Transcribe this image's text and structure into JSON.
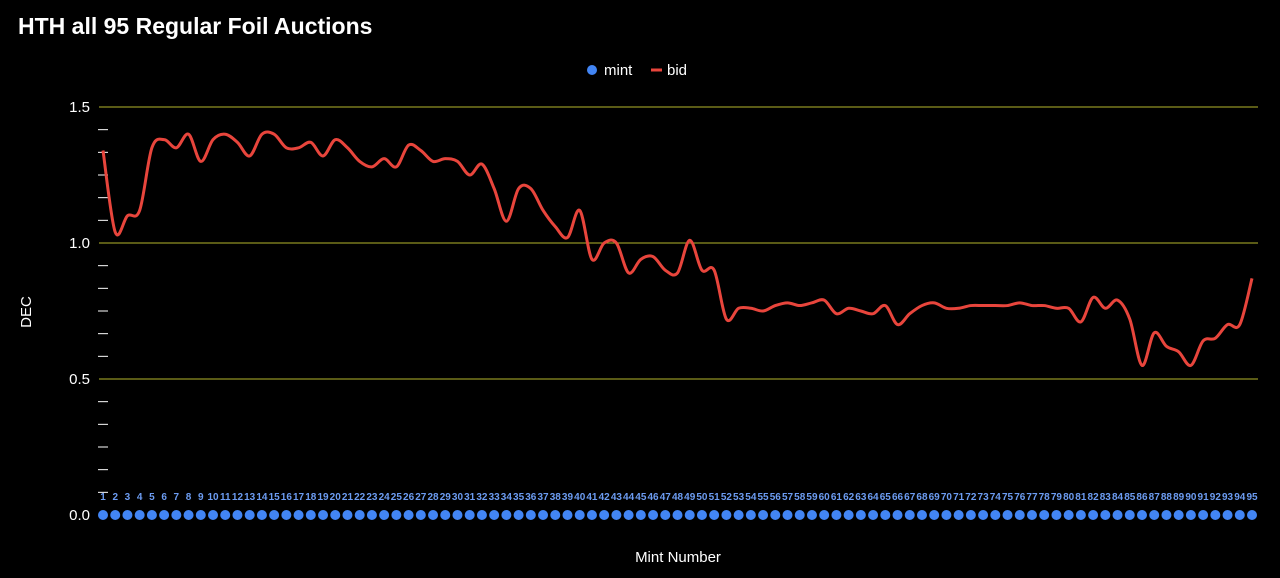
{
  "chart_data": {
    "type": "line",
    "title": "HTH all 95  Regular Foil Auctions",
    "xlabel": "Mint Number",
    "ylabel": "DEC",
    "ylim": [
      0,
      1.5
    ],
    "yticks": [
      "0.0",
      "0.5",
      "1.0",
      "1.5"
    ],
    "grid": true,
    "legend_position": "top",
    "x": [
      1,
      2,
      3,
      4,
      5,
      6,
      7,
      8,
      9,
      10,
      11,
      12,
      13,
      14,
      15,
      16,
      17,
      18,
      19,
      20,
      21,
      22,
      23,
      24,
      25,
      26,
      27,
      28,
      29,
      30,
      31,
      32,
      33,
      34,
      35,
      36,
      37,
      38,
      39,
      40,
      41,
      42,
      43,
      44,
      45,
      46,
      47,
      48,
      49,
      50,
      51,
      52,
      53,
      54,
      55,
      56,
      57,
      58,
      59,
      60,
      61,
      62,
      63,
      64,
      65,
      66,
      67,
      68,
      69,
      70,
      71,
      72,
      73,
      74,
      75,
      76,
      77,
      78,
      79,
      80,
      81,
      82,
      83,
      84,
      85,
      86,
      87,
      88,
      89,
      90,
      91,
      92,
      93,
      94,
      95
    ],
    "series": [
      {
        "name": "mint",
        "color": "#4285f4",
        "style": "points",
        "values": [
          0,
          0,
          0,
          0,
          0,
          0,
          0,
          0,
          0,
          0,
          0,
          0,
          0,
          0,
          0,
          0,
          0,
          0,
          0,
          0,
          0,
          0,
          0,
          0,
          0,
          0,
          0,
          0,
          0,
          0,
          0,
          0,
          0,
          0,
          0,
          0,
          0,
          0,
          0,
          0,
          0,
          0,
          0,
          0,
          0,
          0,
          0,
          0,
          0,
          0,
          0,
          0,
          0,
          0,
          0,
          0,
          0,
          0,
          0,
          0,
          0,
          0,
          0,
          0,
          0,
          0,
          0,
          0,
          0,
          0,
          0,
          0,
          0,
          0,
          0,
          0,
          0,
          0,
          0,
          0,
          0,
          0,
          0,
          0,
          0,
          0,
          0,
          0,
          0,
          0,
          0,
          0,
          0,
          0,
          0
        ]
      },
      {
        "name": "bid",
        "color": "#e8453c",
        "style": "line",
        "values": [
          1.34,
          1.04,
          1.1,
          1.12,
          1.35,
          1.38,
          1.35,
          1.4,
          1.3,
          1.38,
          1.4,
          1.37,
          1.32,
          1.4,
          1.4,
          1.35,
          1.35,
          1.37,
          1.32,
          1.38,
          1.35,
          1.3,
          1.28,
          1.31,
          1.28,
          1.36,
          1.34,
          1.3,
          1.31,
          1.3,
          1.25,
          1.29,
          1.2,
          1.08,
          1.2,
          1.2,
          1.12,
          1.06,
          1.02,
          1.12,
          0.94,
          1.0,
          1.0,
          0.89,
          0.94,
          0.95,
          0.9,
          0.89,
          1.01,
          0.9,
          0.9,
          0.72,
          0.76,
          0.76,
          0.75,
          0.77,
          0.78,
          0.77,
          0.78,
          0.79,
          0.74,
          0.76,
          0.75,
          0.74,
          0.77,
          0.7,
          0.74,
          0.77,
          0.78,
          0.76,
          0.76,
          0.77,
          0.77,
          0.77,
          0.77,
          0.78,
          0.77,
          0.77,
          0.76,
          0.76,
          0.71,
          0.8,
          0.76,
          0.79,
          0.72,
          0.55,
          0.67,
          0.62,
          0.6,
          0.55,
          0.64,
          0.65,
          0.7,
          0.7,
          0.87
        ]
      }
    ]
  }
}
